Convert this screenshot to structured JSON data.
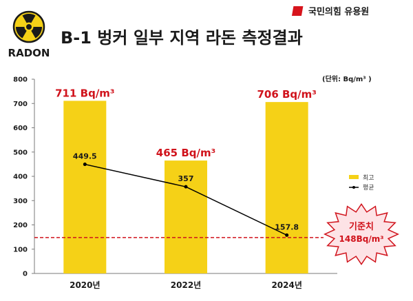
{
  "header": {
    "title": "B-1 벙커 일부 지역 라돈 측정결과",
    "logo_label": "RADON",
    "source_label": "국민의힘 유용원"
  },
  "colors": {
    "bar": "#f5d117",
    "bar_label": "#d0121b",
    "line": "#000000",
    "reference_line": "#d0121b",
    "badge_fill": "#fde3e6",
    "badge_text": "#d0121b",
    "source_mark": "#d7141c"
  },
  "chart_data": {
    "type": "bar",
    "categories": [
      "2020년",
      "2022년",
      "2024년"
    ],
    "ylim": [
      0,
      800
    ],
    "y_ticks": [
      "0",
      "100",
      "200",
      "300",
      "400",
      "500",
      "600",
      "700",
      "800"
    ],
    "unit_note": "(단위: Bq/m³ )",
    "series": [
      {
        "name": "최고",
        "values": [
          711,
          465,
          706
        ],
        "labels": [
          "711 Bq/m³",
          "465 Bq/m³",
          "706 Bq/m³"
        ]
      },
      {
        "name": "평균",
        "values": [
          449.5,
          357,
          157.8
        ],
        "labels": [
          "449.5",
          "357",
          "157.8"
        ]
      }
    ],
    "reference": {
      "value": 148,
      "label_line1": "기준치",
      "label_line2": "148Bq/m³"
    },
    "grid": false,
    "legend_position": "right"
  }
}
